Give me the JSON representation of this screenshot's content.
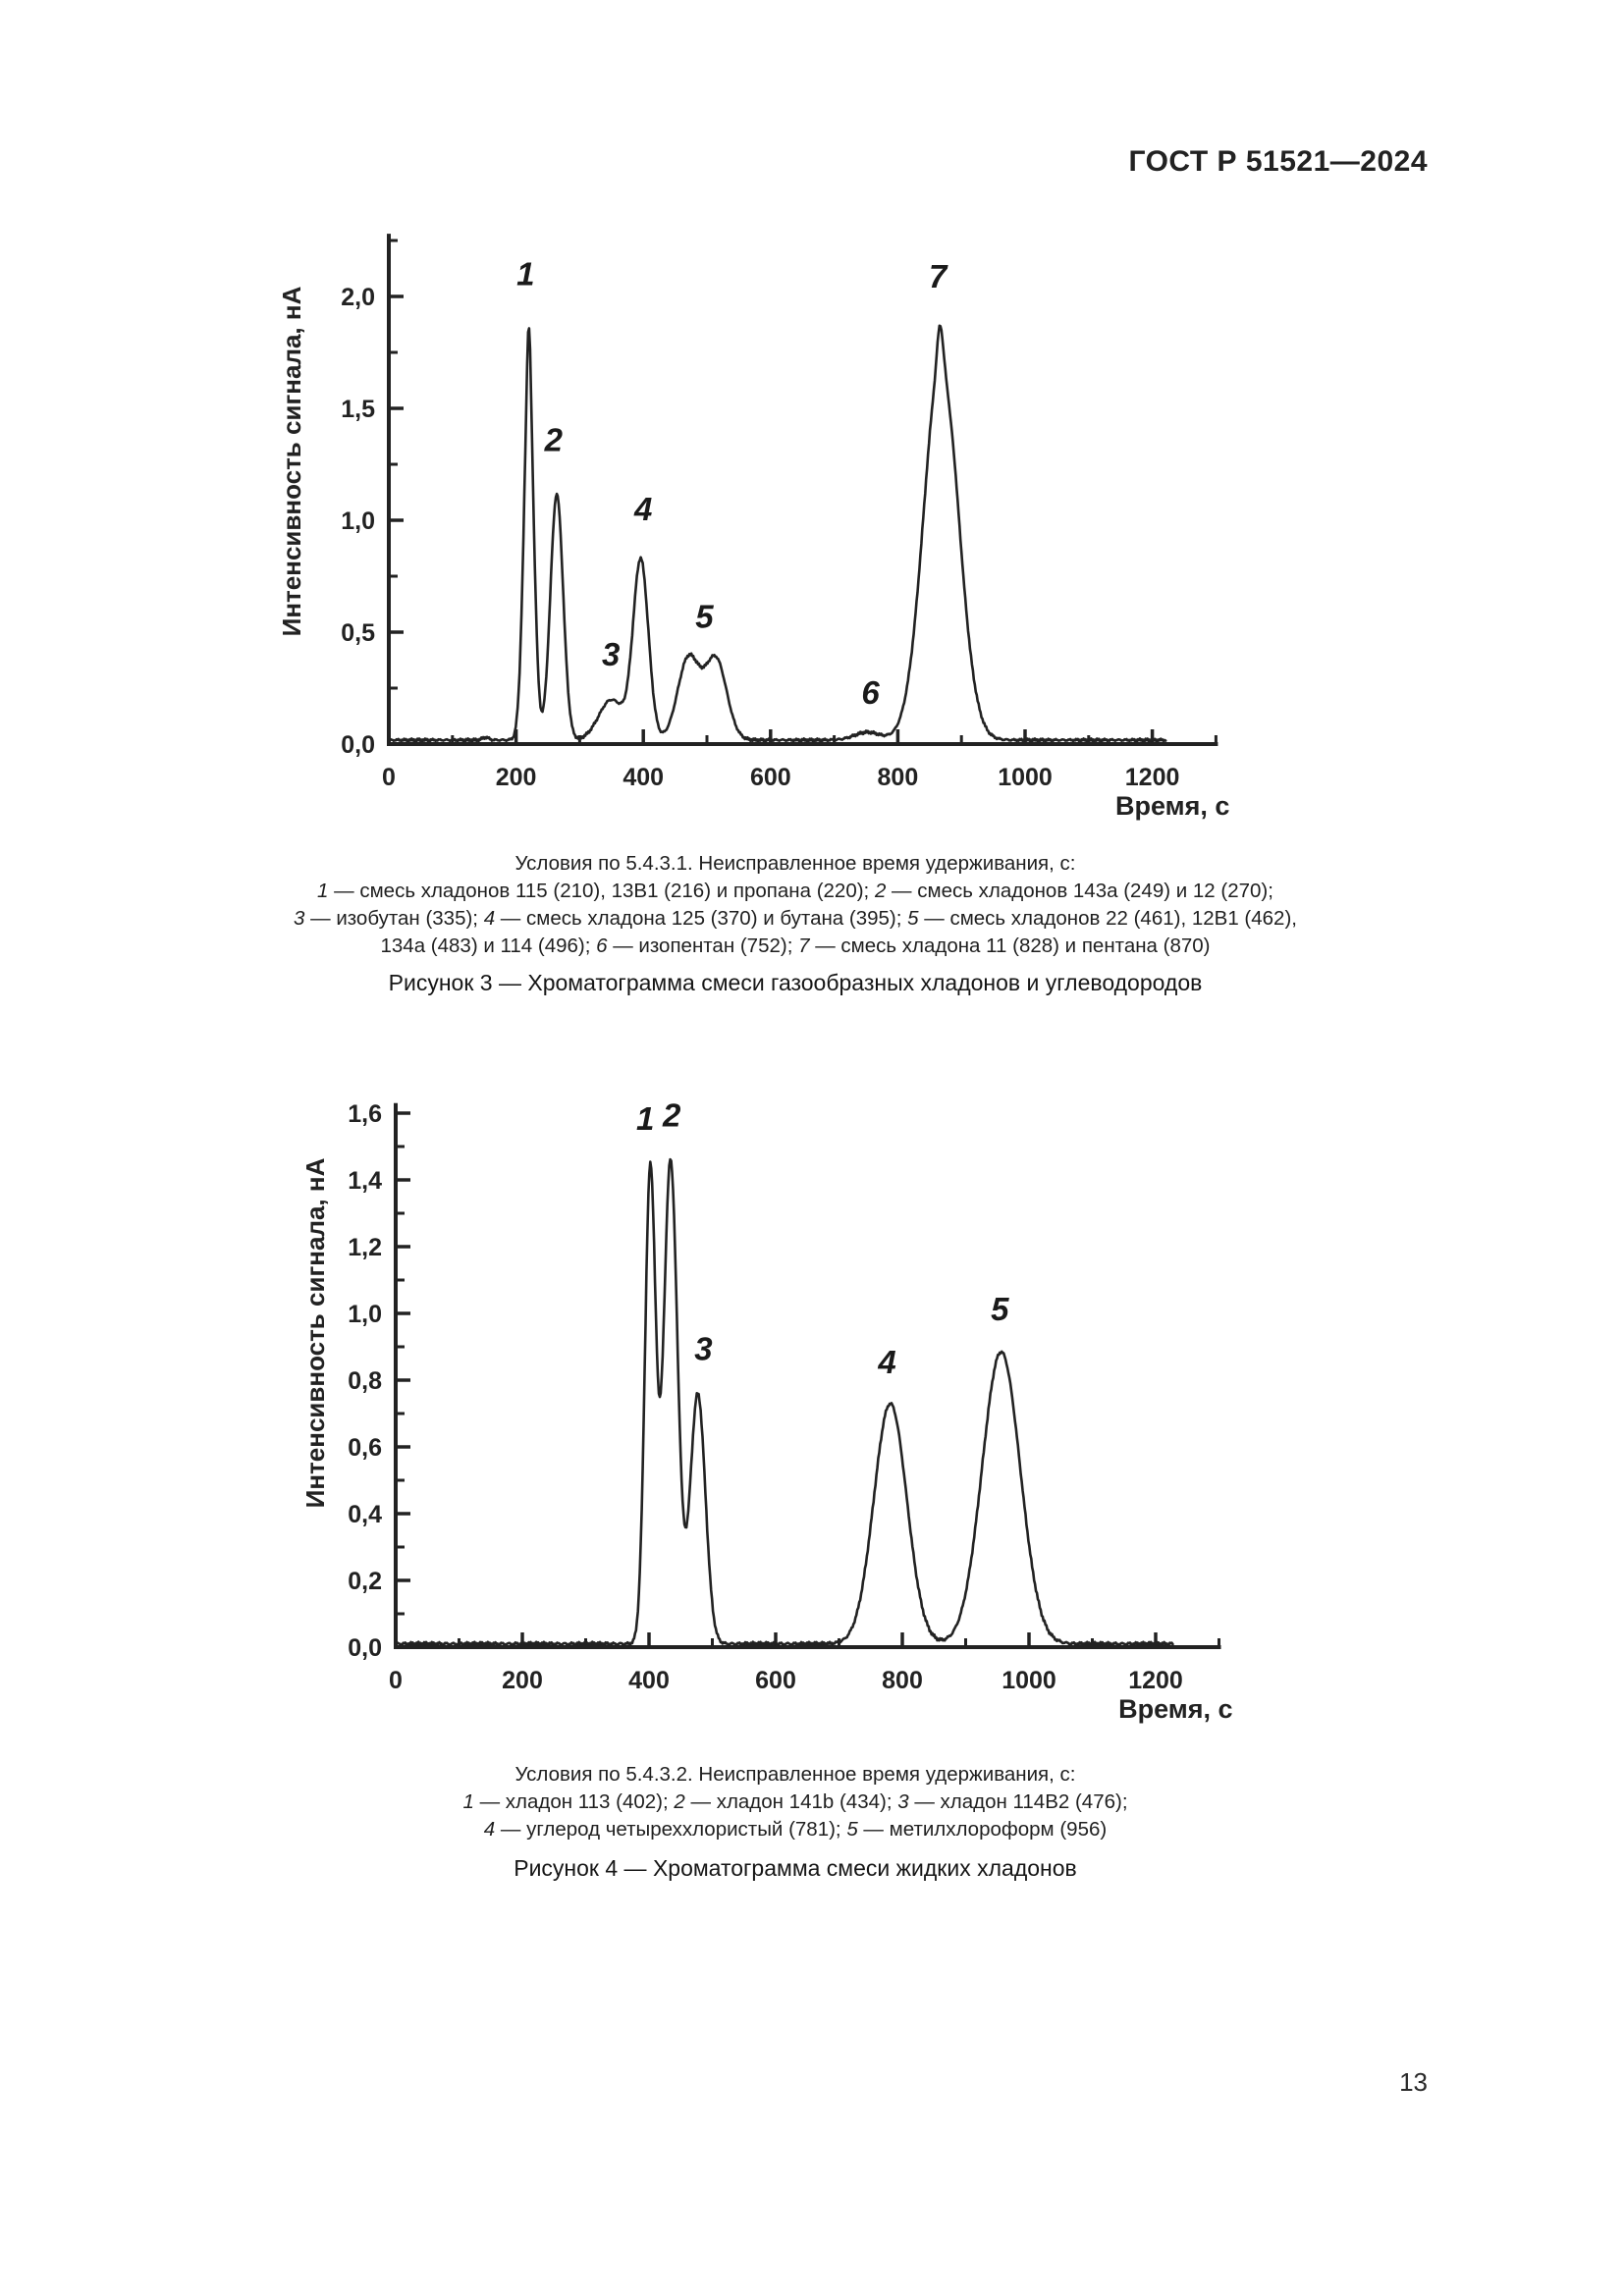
{
  "header": {
    "title": "ГОСТ Р 51521—2024"
  },
  "footer": {
    "page_number": "13"
  },
  "figures": [
    {
      "title": "Рисунок 3 — Хроматограмма смеси газообразных хладонов и углеводородов",
      "caption_lines": [
        [
          {
            "t": "Условия по 5.4.3.1. Неисправленное время удерживания, с:"
          }
        ],
        [
          {
            "t": "1",
            "i": true
          },
          {
            "t": " — смесь хладонов 115 (210), 13В1 (216) и пропана (220); "
          },
          {
            "t": "2",
            "i": true
          },
          {
            "t": " — смесь хладонов 143а (249) и 12 (270);"
          }
        ],
        [
          {
            "t": "3",
            "i": true
          },
          {
            "t": " — изобутан (335); "
          },
          {
            "t": "4",
            "i": true
          },
          {
            "t": " — смесь хладона 125 (370) и бутана (395); "
          },
          {
            "t": "5",
            "i": true
          },
          {
            "t": " — смесь хладонов 22 (461), 12В1 (462),"
          }
        ],
        [
          {
            "t": "134а (483) и 114 (496); "
          },
          {
            "t": "6",
            "i": true
          },
          {
            "t": " — изопентан (752); "
          },
          {
            "t": "7",
            "i": true
          },
          {
            "t": " — смесь хладона 11 (828) и пентана (870)"
          }
        ]
      ]
    },
    {
      "title": "Рисунок 4 — Хроматограмма смеси жидких хладонов",
      "caption_lines": [
        [
          {
            "t": "Условия по 5.4.3.2. Неисправленное время удерживания, с:"
          }
        ],
        [
          {
            "t": "1",
            "i": true
          },
          {
            "t": " — хладон 113 (402); "
          },
          {
            "t": "2",
            "i": true
          },
          {
            "t": " — хладон 141b (434); "
          },
          {
            "t": "3",
            "i": true
          },
          {
            "t": " — хладон 114В2 (476);"
          }
        ],
        [
          {
            "t": "4",
            "i": true
          },
          {
            "t": " — углерод четыреххлористый (781); "
          },
          {
            "t": "5",
            "i": true
          },
          {
            "t": " — метилхлороформ (956)"
          }
        ]
      ]
    }
  ],
  "chart_data": [
    {
      "type": "line",
      "title": "Хроматограмма смеси газообразных хладонов и углеводородов",
      "xlabel": "Время, с",
      "ylabel": "Интенсивность сигнала, нА",
      "xlim": [
        0,
        1300
      ],
      "ylim": [
        0,
        2.28
      ],
      "x_major": 200,
      "x_minor": 100,
      "x_tick_labels": [
        "0",
        "200",
        "400",
        "600",
        "800",
        "1000",
        "1200"
      ],
      "y_major": 0.5,
      "y_minor": 0.25,
      "y_tick_labels": [
        "0,0",
        "0,5",
        "1,0",
        "1,5",
        "2,0"
      ],
      "grid": false,
      "line_color": "#222222",
      "baseline_nA": 0.018,
      "noise_amp": 0.004,
      "trace_range": [
        3,
        1222
      ],
      "peaks": [
        {
          "num": "1",
          "substances": [
            {
              "name": "хладон 115",
              "t_s": 210
            },
            {
              "name": "хладон 13В1",
              "t_s": 216
            },
            {
              "name": "пропан",
              "t_s": 220
            }
          ],
          "apex_t_s": 220,
          "apex_nA": 1.85
        },
        {
          "num": "2",
          "substances": [
            {
              "name": "хладон 143а",
              "t_s": 249
            },
            {
              "name": "хладон 12",
              "t_s": 270
            }
          ],
          "apex_t_s": 264,
          "apex_nA": 1.12
        },
        {
          "num": "3",
          "substances": [
            {
              "name": "изобутан",
              "t_s": 335
            }
          ],
          "apex_t_s": 350,
          "apex_nA": 0.2
        },
        {
          "num": "4",
          "substances": [
            {
              "name": "хладон 125",
              "t_s": 370
            },
            {
              "name": "бутан",
              "t_s": 395
            }
          ],
          "apex_t_s": 396,
          "apex_nA": 0.83
        },
        {
          "num": "5",
          "substances": [
            {
              "name": "хладон 22",
              "t_s": 461
            },
            {
              "name": "хладон 12В1",
              "t_s": 462
            },
            {
              "name": "хладон 134а",
              "t_s": 483
            },
            {
              "name": "хладон 114",
              "t_s": 496
            }
          ],
          "apex_t_s": 490,
          "apex_nA": 0.4
        },
        {
          "num": "6",
          "substances": [
            {
              "name": "изопентан",
              "t_s": 752
            }
          ],
          "apex_t_s": 752,
          "apex_nA": 0.05
        },
        {
          "num": "7",
          "substances": [
            {
              "name": "хладон 11",
              "t_s": 828
            },
            {
              "name": "пентан",
              "t_s": 870
            }
          ],
          "apex_t_s": 868,
          "apex_nA": 1.86
        }
      ],
      "components": [
        {
          "c": 152,
          "h": 0.012,
          "s": 5
        },
        {
          "c": 220,
          "h": 1.58,
          "s": 8
        },
        {
          "c": 220,
          "h": 0.27,
          "s": 2.8
        },
        {
          "c": 264,
          "h": 1.1,
          "s": 10
        },
        {
          "c": 350,
          "h": 0.18,
          "s": 20
        },
        {
          "c": 396,
          "h": 0.8,
          "s": 12
        },
        {
          "c": 471,
          "h": 0.365,
          "s": 17
        },
        {
          "c": 514,
          "h": 0.36,
          "s": 17
        },
        {
          "c": 752,
          "h": 0.035,
          "s": 20
        },
        {
          "c": 868,
          "h": 1.7,
          "s": 27
        },
        {
          "c": 866,
          "h": 0.16,
          "s": 4
        },
        {
          "c": 881,
          "h": -0.03,
          "s": 4
        }
      ],
      "peak_annotations": [
        {
          "label": "1",
          "x": 215,
          "y": 2.05
        },
        {
          "label": "2",
          "x": 259,
          "y": 1.31
        },
        {
          "label": "3",
          "x": 349,
          "y": 0.35
        },
        {
          "label": "4",
          "x": 400,
          "y": 1.0
        },
        {
          "label": "5",
          "x": 496,
          "y": 0.52
        },
        {
          "label": "6",
          "x": 757,
          "y": 0.18
        },
        {
          "label": "7",
          "x": 863,
          "y": 2.04
        }
      ]
    },
    {
      "type": "line",
      "title": "Хроматограмма смеси жидких хладонов",
      "xlabel": "Время, с",
      "ylabel": "Интенсивность сигнала, нА",
      "xlim": [
        0,
        1300
      ],
      "ylim": [
        0,
        1.63
      ],
      "x_major": 200,
      "x_minor": 100,
      "x_tick_labels": [
        "0",
        "200",
        "400",
        "600",
        "800",
        "1000",
        "1200"
      ],
      "y_major": 0.2,
      "y_minor": 0.1,
      "y_tick_labels": [
        "0,0",
        "0,2",
        "0,4",
        "0,6",
        "0,8",
        "1,0",
        "1,2",
        "1,4",
        "1,6"
      ],
      "grid": false,
      "line_color": "#222222",
      "baseline_nA": 0.01,
      "noise_amp": 0.0035,
      "trace_range": [
        3,
        1228
      ],
      "peaks": [
        {
          "num": "1",
          "substances": [
            {
              "name": "хладон 113",
              "t_s": 402
            }
          ],
          "apex_t_s": 402,
          "apex_nA": 1.43
        },
        {
          "num": "2",
          "substances": [
            {
              "name": "хладон 141b",
              "t_s": 434
            }
          ],
          "apex_t_s": 434,
          "apex_nA": 1.46
        },
        {
          "num": "3",
          "substances": [
            {
              "name": "хладон 114В2",
              "t_s": 476
            }
          ],
          "apex_t_s": 476,
          "apex_nA": 0.76
        },
        {
          "num": "4",
          "substances": [
            {
              "name": "углерод четыреххлористый",
              "t_s": 781
            }
          ],
          "apex_t_s": 781,
          "apex_nA": 0.73
        },
        {
          "num": "5",
          "substances": [
            {
              "name": "метилхлороформ",
              "t_s": 956
            }
          ],
          "apex_t_s": 956,
          "apex_nA": 0.89
        }
      ],
      "components": [
        {
          "c": 402,
          "h": 1.42,
          "s": 8.5
        },
        {
          "c": 434,
          "h": 1.45,
          "s": 11
        },
        {
          "c": 477,
          "h": 0.75,
          "s": 12
        },
        {
          "c": 781,
          "h": 0.72,
          "s": 26
        },
        {
          "c": 956,
          "h": 0.875,
          "s": 30
        }
      ],
      "peak_annotations": [
        {
          "label": "1",
          "x": 394,
          "y": 1.55
        },
        {
          "label": "2",
          "x": 436,
          "y": 1.56
        },
        {
          "label": "3",
          "x": 486,
          "y": 0.86
        },
        {
          "label": "4",
          "x": 776,
          "y": 0.82
        },
        {
          "label": "5",
          "x": 954,
          "y": 0.98
        }
      ]
    }
  ]
}
